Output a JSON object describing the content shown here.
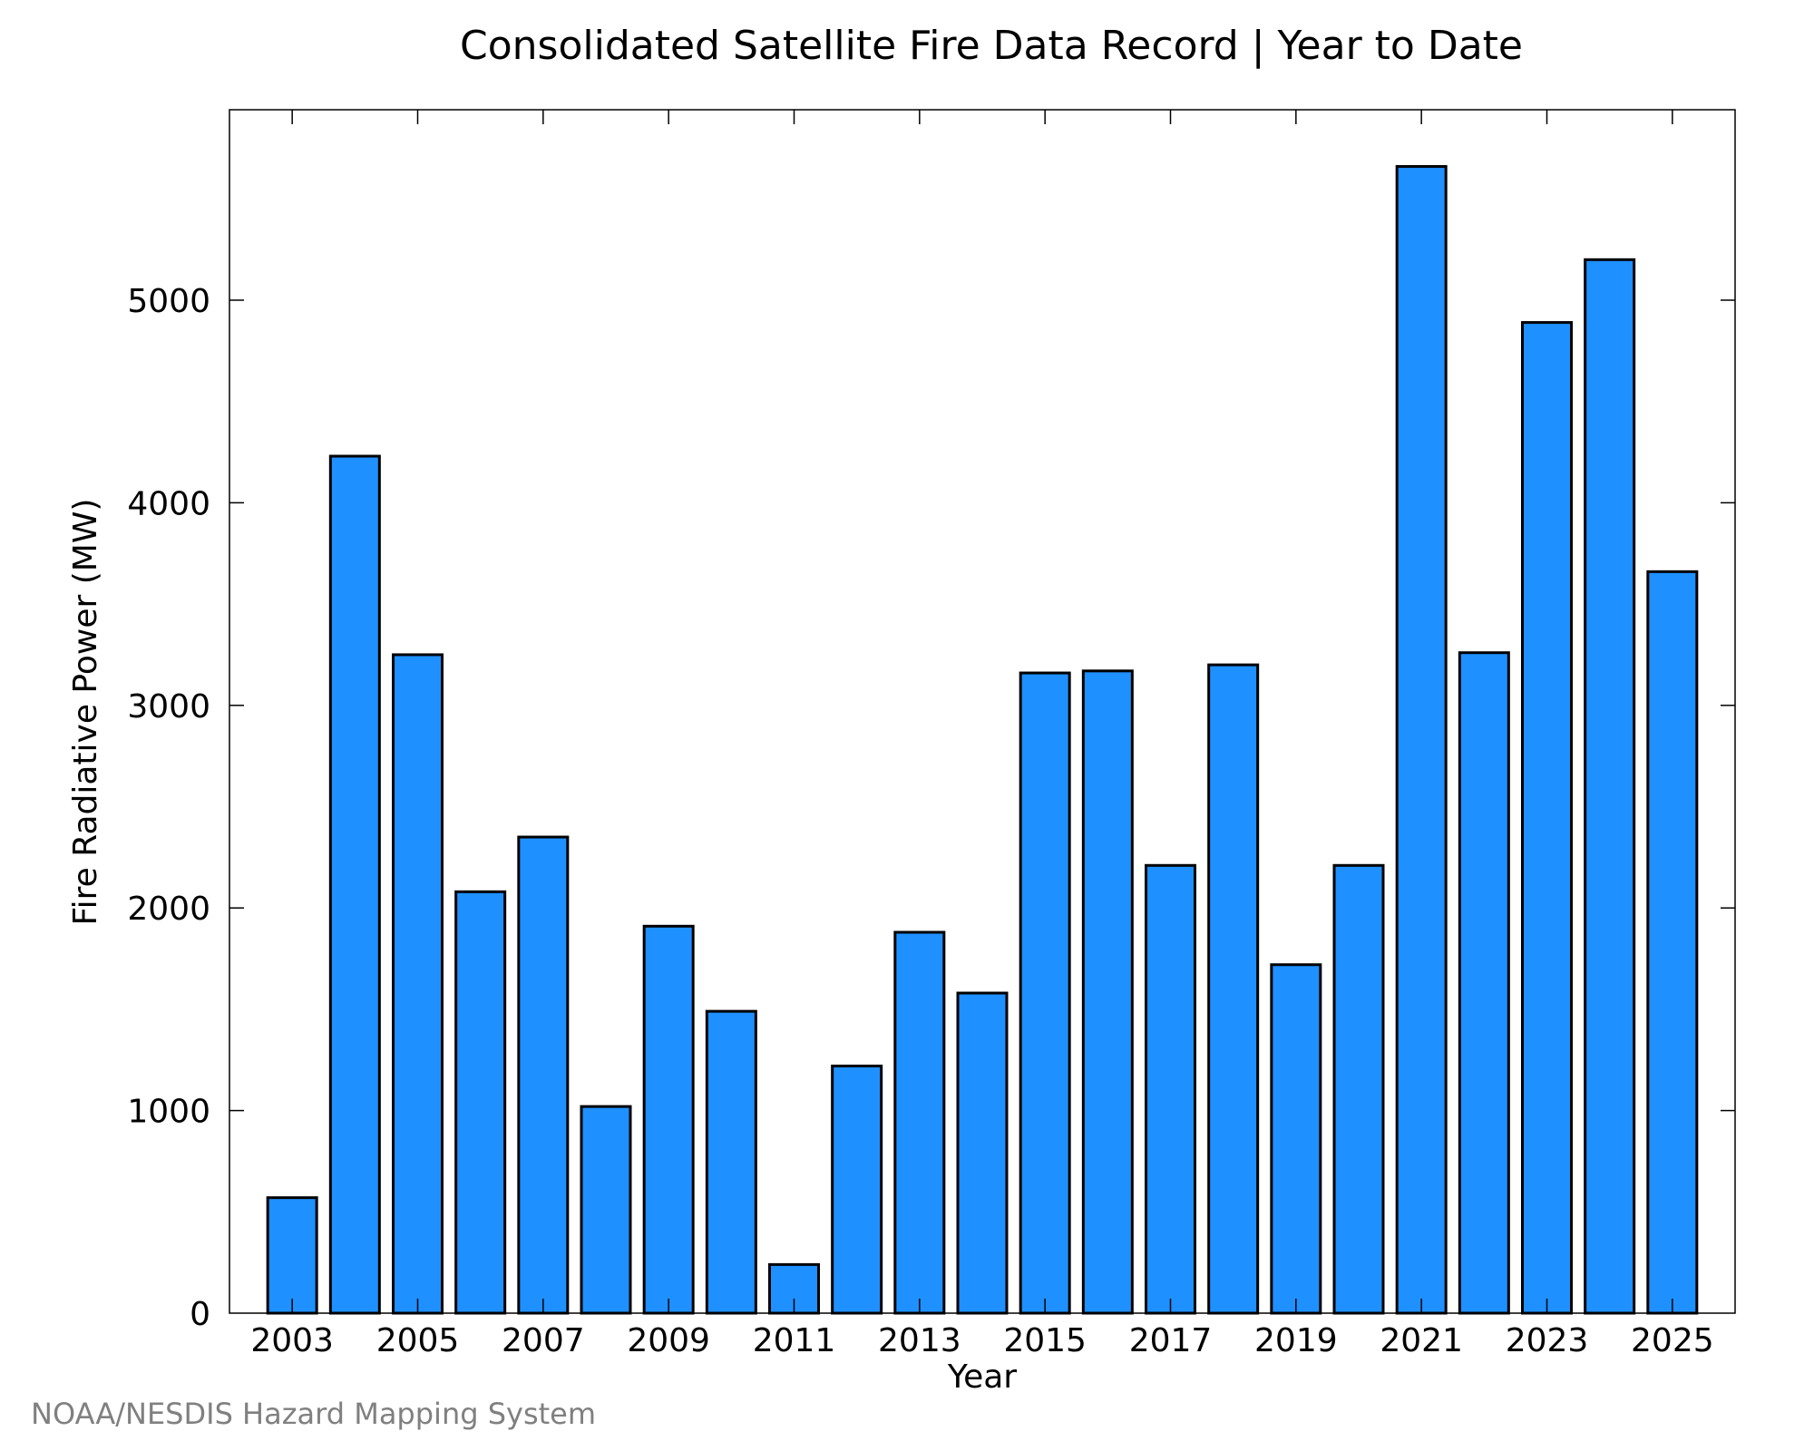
{
  "chart_data": {
    "type": "bar",
    "title": "Consolidated Satellite Fire Data Record | Year to Date",
    "xlabel": "Year",
    "ylabel": "Fire Radiative Power (MW)",
    "categories": [
      "2003",
      "2004",
      "2005",
      "2006",
      "2007",
      "2008",
      "2009",
      "2010",
      "2011",
      "2012",
      "2013",
      "2014",
      "2015",
      "2016",
      "2017",
      "2018",
      "2019",
      "2020",
      "2021",
      "2022",
      "2023",
      "2024",
      "2025"
    ],
    "values": [
      570,
      4230,
      3250,
      2080,
      2350,
      1020,
      1910,
      1490,
      240,
      1220,
      1880,
      1580,
      3160,
      3170,
      2210,
      3200,
      1720,
      2210,
      5660,
      3260,
      4890,
      5200,
      3660
    ],
    "x_tick_labels": [
      "2003",
      "2005",
      "2007",
      "2009",
      "2011",
      "2013",
      "2015",
      "2017",
      "2019",
      "2021",
      "2023",
      "2025"
    ],
    "y_ticks": [
      0,
      1000,
      2000,
      3000,
      4000,
      5000
    ],
    "ylim": [
      0,
      5940
    ],
    "grid": false,
    "bar_color": "#1E90FF",
    "bar_edge_color": "#000000"
  },
  "footer": {
    "credit": "NOAA/NESDIS Hazard Mapping System"
  }
}
